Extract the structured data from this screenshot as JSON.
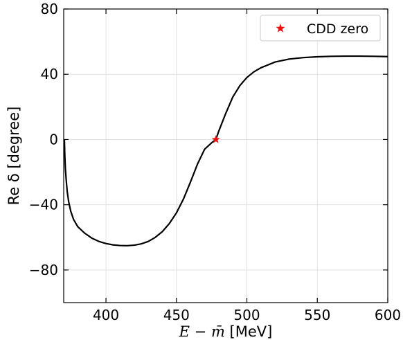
{
  "chart_data": {
    "type": "line",
    "xlabel_parts": [
      "E",
      " − ",
      "m̄",
      " [MeV]"
    ],
    "ylabel": "Re δ [degree]",
    "xlim": [
      370,
      600
    ],
    "ylim": [
      -100,
      80
    ],
    "xticks": [
      400,
      450,
      500,
      550,
      600
    ],
    "xtick_labels": [
      "400",
      "450",
      "500",
      "550",
      "600"
    ],
    "yticks": [
      -80,
      -40,
      0,
      40,
      80
    ],
    "ytick_labels": [
      "−80",
      "−40",
      "0",
      "40",
      "80"
    ],
    "grid": true,
    "legend_position": "top-right",
    "series": [
      {
        "kind": "line",
        "color": "#000000",
        "x": [
          370.5,
          370.8,
          371.2,
          371.8,
          372.5,
          373.5,
          375,
          377,
          380,
          385,
          390,
          395,
          400,
          405,
          410,
          415,
          420,
          425,
          430,
          435,
          440,
          445,
          450,
          455,
          460,
          465,
          470,
          475,
          478,
          480,
          485,
          490,
          495,
          500,
          505,
          510,
          520,
          530,
          540,
          550,
          560,
          570,
          580,
          590,
          600
        ],
        "y": [
          0,
          -10,
          -18,
          -25,
          -32,
          -38,
          -44,
          -49,
          -53.5,
          -57.5,
          -60.5,
          -62.5,
          -63.8,
          -64.6,
          -65.0,
          -65.1,
          -64.8,
          -64.0,
          -62.5,
          -60.0,
          -56.5,
          -51.5,
          -45,
          -36.5,
          -26,
          -15,
          -6,
          -2,
          0,
          5,
          16,
          26,
          33,
          38,
          41.5,
          44,
          47.5,
          49.3,
          50.2,
          50.7,
          51,
          51.1,
          51.1,
          51,
          50.8
        ]
      },
      {
        "kind": "marker",
        "name": "CDD zero",
        "color": "#ee1111",
        "x": [
          478
        ],
        "y": [
          0
        ]
      }
    ]
  }
}
